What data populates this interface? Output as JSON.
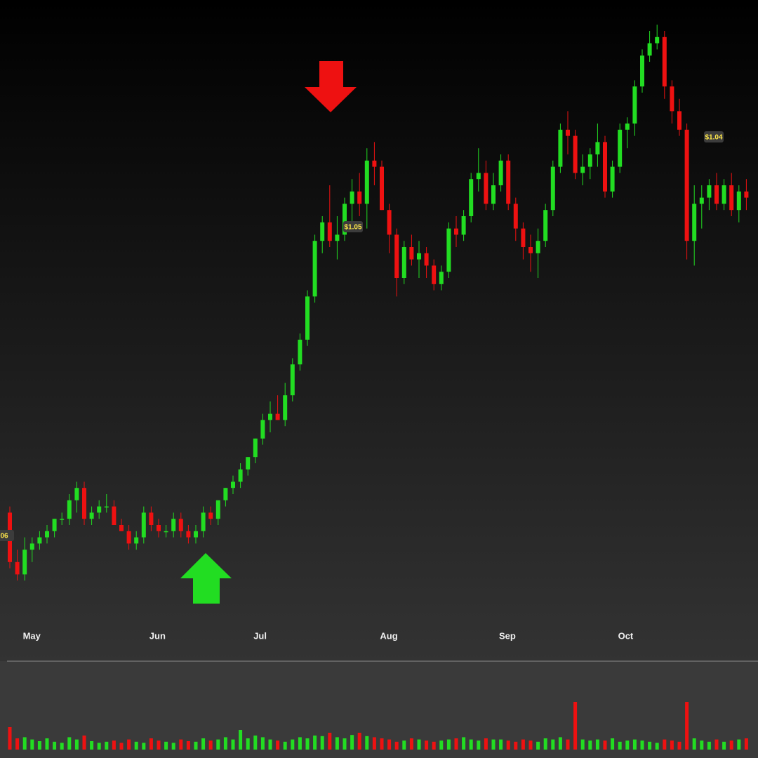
{
  "chart_data": {
    "type": "candlestick",
    "up_color": "#22dd22",
    "down_color": "#ee1111",
    "ylim": [
      0,
      100
    ],
    "volume_ylim": [
      0,
      100
    ],
    "categories": [
      null,
      "May",
      null,
      null,
      null,
      null,
      null,
      null,
      null,
      null,
      null,
      null,
      null,
      null,
      null,
      null,
      null,
      null,
      "Jun",
      null,
      null,
      null,
      null,
      null,
      null,
      null,
      null,
      null,
      null,
      null,
      null,
      null,
      "Jul",
      null,
      null,
      null,
      null,
      null,
      null,
      null,
      null,
      null,
      null,
      null,
      null,
      null,
      null,
      null,
      null,
      "Aug",
      null,
      null,
      null,
      null,
      null,
      null,
      null,
      null,
      null,
      null,
      null,
      null,
      null,
      null,
      null,
      "Sep",
      null,
      null,
      null,
      null,
      null,
      null,
      null,
      null,
      null,
      null,
      null,
      null,
      null,
      null,
      null,
      "Oct",
      null,
      null,
      null,
      null,
      null,
      null,
      null,
      null,
      null,
      null,
      null,
      null,
      null,
      null,
      null,
      null,
      null,
      null
    ],
    "candles": [
      [
        17,
        18,
        8,
        9
      ],
      [
        9,
        11,
        6,
        7
      ],
      [
        7,
        13,
        6,
        11
      ],
      [
        11,
        13,
        9,
        12
      ],
      [
        12,
        14,
        11,
        13
      ],
      [
        13,
        15,
        12,
        14
      ],
      [
        14,
        16,
        13,
        16
      ],
      [
        16,
        17,
        15,
        16
      ],
      [
        16,
        20,
        15,
        19
      ],
      [
        19,
        22,
        17,
        21
      ],
      [
        21,
        22,
        15,
        16
      ],
      [
        16,
        18,
        15,
        17
      ],
      [
        17,
        19,
        16,
        18
      ],
      [
        18,
        20,
        17,
        18
      ],
      [
        18,
        19,
        15,
        15
      ],
      [
        15,
        16,
        14,
        14
      ],
      [
        14,
        15,
        11,
        12
      ],
      [
        12,
        14,
        11,
        13
      ],
      [
        13,
        18,
        12,
        17
      ],
      [
        17,
        18,
        14,
        15
      ],
      [
        15,
        16,
        13,
        14
      ],
      [
        14,
        15,
        13,
        14
      ],
      [
        14,
        17,
        13,
        16
      ],
      [
        16,
        17,
        13,
        14
      ],
      [
        14,
        15,
        12,
        13
      ],
      [
        13,
        15,
        12,
        14
      ],
      [
        14,
        18,
        13,
        17
      ],
      [
        17,
        18,
        15,
        16
      ],
      [
        16,
        19,
        15,
        19
      ],
      [
        19,
        21,
        18,
        21
      ],
      [
        21,
        23,
        20,
        22
      ],
      [
        22,
        25,
        21,
        24
      ],
      [
        24,
        26,
        23,
        26
      ],
      [
        26,
        29,
        25,
        29
      ],
      [
        29,
        33,
        28,
        32
      ],
      [
        32,
        35,
        30,
        33
      ],
      [
        33,
        36,
        32,
        32
      ],
      [
        32,
        38,
        31,
        36
      ],
      [
        36,
        42,
        35,
        41
      ],
      [
        41,
        46,
        40,
        45
      ],
      [
        45,
        53,
        44,
        52
      ],
      [
        52,
        62,
        51,
        61
      ],
      [
        61,
        65,
        59,
        64
      ],
      [
        64,
        70,
        60,
        61
      ],
      [
        61,
        65,
        58,
        62
      ],
      [
        62,
        68,
        61,
        67
      ],
      [
        67,
        71,
        64,
        69
      ],
      [
        69,
        72,
        65,
        67
      ],
      [
        67,
        76,
        63,
        74
      ],
      [
        74,
        77,
        70,
        73
      ],
      [
        73,
        74,
        66,
        66
      ],
      [
        66,
        67,
        59,
        62
      ],
      [
        62,
        63,
        52,
        55
      ],
      [
        55,
        61,
        54,
        60
      ],
      [
        60,
        62,
        57,
        58
      ],
      [
        58,
        61,
        55,
        59
      ],
      [
        59,
        60,
        55,
        57
      ],
      [
        57,
        58,
        53,
        54
      ],
      [
        54,
        57,
        53,
        56
      ],
      [
        56,
        64,
        55,
        63
      ],
      [
        63,
        65,
        60,
        62
      ],
      [
        62,
        66,
        61,
        65
      ],
      [
        65,
        72,
        64,
        71
      ],
      [
        71,
        76,
        69,
        72
      ],
      [
        72,
        74,
        66,
        67
      ],
      [
        67,
        72,
        66,
        70
      ],
      [
        70,
        75,
        69,
        74
      ],
      [
        74,
        75,
        66,
        67
      ],
      [
        67,
        68,
        61,
        63
      ],
      [
        63,
        64,
        58,
        60
      ],
      [
        60,
        62,
        56,
        59
      ],
      [
        59,
        63,
        55,
        61
      ],
      [
        61,
        67,
        60,
        66
      ],
      [
        66,
        74,
        65,
        73
      ],
      [
        73,
        80,
        72,
        79
      ],
      [
        79,
        82,
        75,
        78
      ],
      [
        78,
        79,
        71,
        72
      ],
      [
        72,
        75,
        70,
        73
      ],
      [
        73,
        76,
        71,
        75
      ],
      [
        75,
        80,
        73,
        77
      ],
      [
        77,
        78,
        68,
        69
      ],
      [
        69,
        74,
        68,
        73
      ],
      [
        73,
        80,
        72,
        79
      ],
      [
        79,
        81,
        76,
        80
      ],
      [
        80,
        87,
        78,
        86
      ],
      [
        86,
        92,
        85,
        91
      ],
      [
        91,
        95,
        90,
        93
      ],
      [
        93,
        96,
        92,
        94
      ],
      [
        94,
        95,
        84,
        86
      ],
      [
        86,
        87,
        80,
        82
      ],
      [
        82,
        84,
        78,
        79
      ],
      [
        79,
        80,
        58,
        61
      ],
      [
        61,
        70,
        57,
        67
      ],
      [
        67,
        70,
        63,
        68
      ],
      [
        68,
        71,
        66,
        70
      ],
      [
        70,
        72,
        66,
        67
      ],
      [
        67,
        71,
        66,
        70
      ],
      [
        70,
        72,
        65,
        66
      ],
      [
        66,
        70,
        64,
        69
      ],
      [
        69,
        71,
        66,
        68
      ]
    ],
    "volumes": [
      40,
      20,
      22,
      18,
      15,
      20,
      14,
      12,
      22,
      18,
      25,
      15,
      12,
      14,
      16,
      12,
      18,
      14,
      12,
      20,
      16,
      14,
      12,
      18,
      15,
      14,
      20,
      16,
      18,
      22,
      18,
      35,
      20,
      25,
      22,
      18,
      16,
      14,
      18,
      22,
      20,
      25,
      24,
      30,
      22,
      20,
      26,
      30,
      24,
      22,
      20,
      18,
      14,
      16,
      20,
      18,
      16,
      14,
      16,
      18,
      20,
      22,
      18,
      16,
      20,
      18,
      18,
      16,
      14,
      18,
      16,
      14,
      20,
      18,
      22,
      18,
      85,
      18,
      16,
      18,
      16,
      20,
      14,
      16,
      18,
      16,
      14,
      12,
      18,
      16,
      14,
      85,
      20,
      16,
      14,
      18,
      14,
      16,
      18,
      20
    ],
    "annotations": [
      "$1.05",
      "$1.04",
      "06"
    ]
  }
}
